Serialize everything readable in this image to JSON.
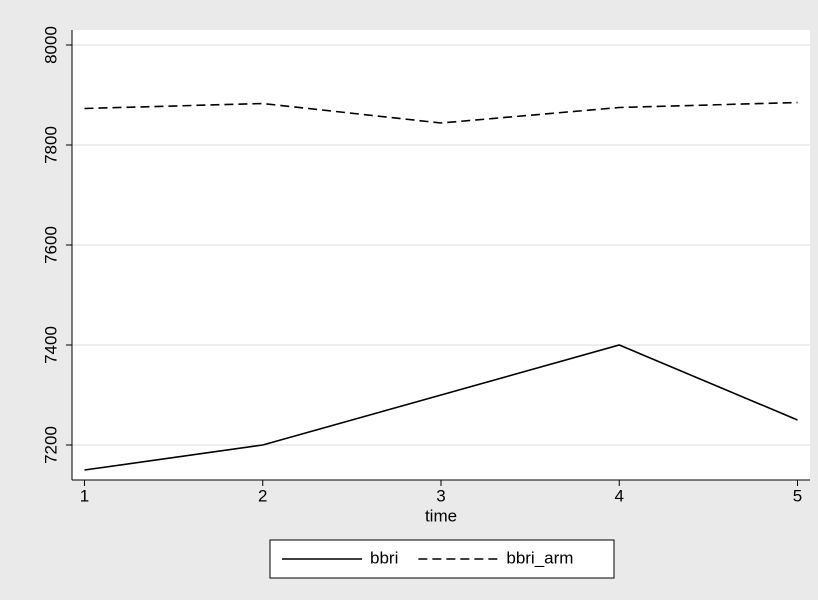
{
  "chart_data": {
    "type": "line",
    "x": [
      1,
      2,
      3,
      4,
      5
    ],
    "x_label": "time",
    "series": [
      {
        "name": "bbri",
        "color": "#000000",
        "dash": "solid",
        "values": [
          7150,
          7200,
          7300,
          7400,
          7250
        ]
      },
      {
        "name": "bbri_arm",
        "color": "#000000",
        "dash": "dashed",
        "values": [
          7873,
          7883,
          7844,
          7875,
          7885
        ]
      }
    ],
    "xlim": [
      0.93,
      5.07
    ],
    "xticks": [
      1,
      2,
      3,
      4,
      5
    ],
    "ylim": [
      7130,
      8030
    ],
    "yticks": [
      7200,
      7400,
      7600,
      7800,
      8000
    ],
    "grid": true,
    "legend": "bottom"
  }
}
